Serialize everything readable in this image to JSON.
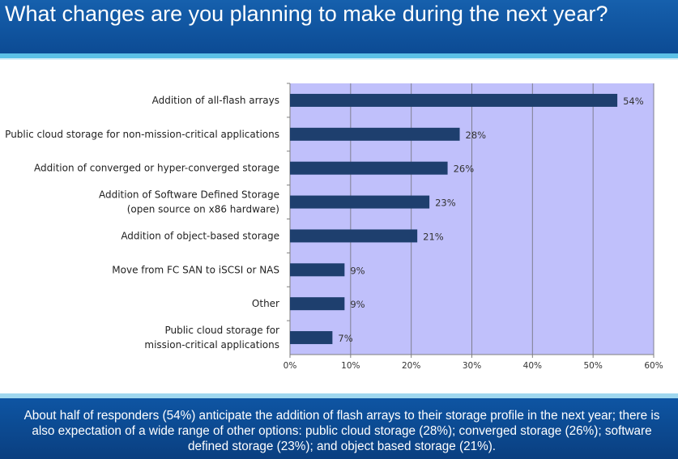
{
  "slide": {
    "title": "What changes are you planning to make during the next year?",
    "summary": "About half of responders (54%) anticipate the addition of flash arrays to their storage profile in the next year; there is also expectation of a wide range of other options: public cloud storage (28%); converged storage (26%); software defined storage (23%); and object based storage (21%)."
  },
  "colors": {
    "plot_background": "#c0c0fb",
    "bar_fill": "#1e3f6e",
    "header_blue": "#0c4b94",
    "accent_cyan": "#5cc0e6"
  },
  "chart_data": {
    "type": "bar",
    "orientation": "horizontal",
    "categories": [
      [
        "Addition of all-flash arrays"
      ],
      [
        "Public cloud storage for non-mission-critical applications"
      ],
      [
        "Addition of converged or hyper-converged storage"
      ],
      [
        "Addition of Software Defined Storage",
        "(open source on x86 hardware)"
      ],
      [
        "Addition of object-based storage"
      ],
      [
        "Move from FC SAN to iSCSI or NAS"
      ],
      [
        "Other"
      ],
      [
        "Public cloud storage for",
        "mission-critical applications"
      ]
    ],
    "values": [
      54,
      28,
      26,
      23,
      21,
      9,
      9,
      7
    ],
    "value_labels": [
      "54%",
      "28%",
      "26%",
      "23%",
      "21%",
      "9%",
      "9%",
      "7%"
    ],
    "xlim": [
      0,
      60
    ],
    "ticks": [
      0,
      10,
      20,
      30,
      40,
      50,
      60
    ],
    "tick_labels": [
      "0%",
      "10%",
      "20%",
      "30%",
      "40%",
      "50%",
      "60%"
    ],
    "grid": true,
    "legend": "none"
  }
}
